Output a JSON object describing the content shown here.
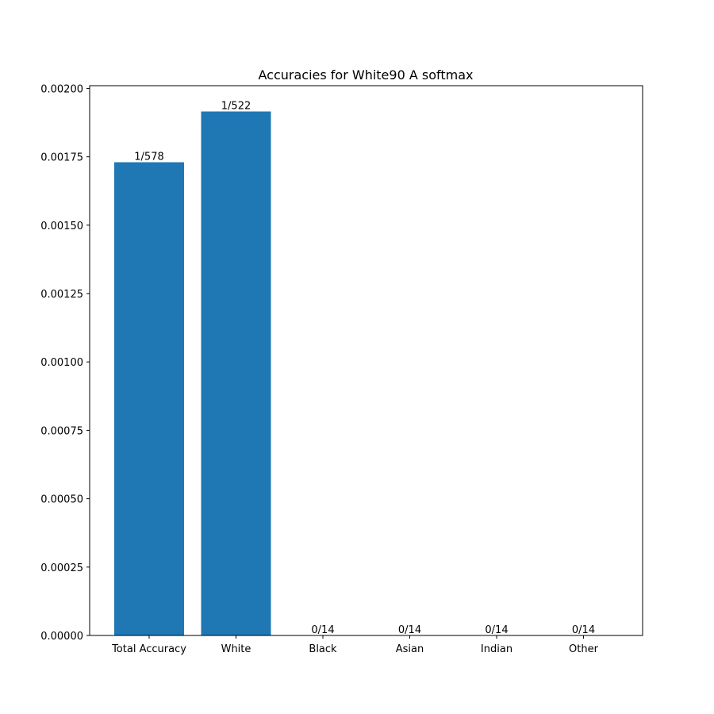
{
  "chart_data": {
    "type": "bar",
    "title": "Accuracies for White90 A softmax",
    "xlabel": "",
    "ylabel": "",
    "categories": [
      "Total Accuracy",
      "White",
      "Black",
      "Asian",
      "Indian",
      "Other"
    ],
    "values": [
      0.0017301,
      0.0019157,
      0,
      0,
      0,
      0
    ],
    "bar_labels": [
      "1/578",
      "1/522",
      "0/14",
      "0/14",
      "0/14",
      "0/14"
    ],
    "ylim": [
      0,
      0.00201
    ],
    "yticks": [
      "0.00000",
      "0.00025",
      "0.00050",
      "0.00075",
      "0.00100",
      "0.00125",
      "0.00150",
      "0.00175",
      "0.00200"
    ],
    "ytick_values": [
      0,
      0.00025,
      0.0005,
      0.00075,
      0.001,
      0.00125,
      0.0015,
      0.00175,
      0.002
    ],
    "bar_color": "#1f77b4",
    "grid": false,
    "legend": "none"
  }
}
